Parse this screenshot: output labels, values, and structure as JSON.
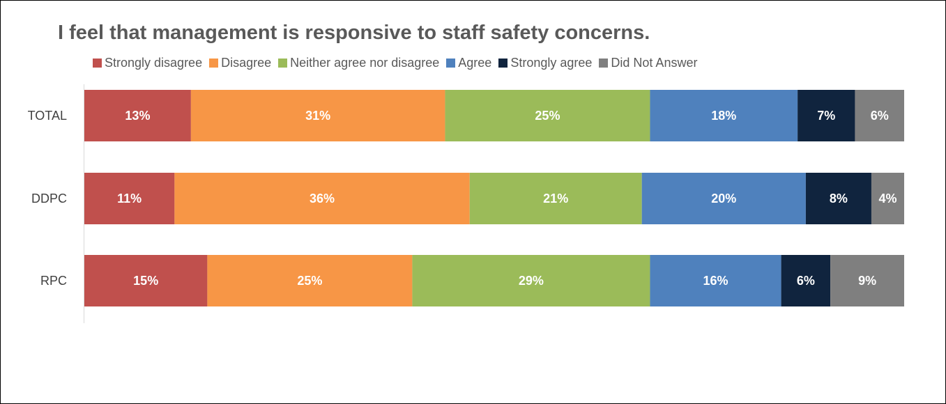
{
  "chart_data": {
    "type": "bar",
    "orientation": "horizontal",
    "stacked": true,
    "percent_stacked": true,
    "title": "I feel that management is responsive to staff safety concerns.",
    "categories": [
      "TOTAL",
      "DDPC",
      "RPC"
    ],
    "series": [
      {
        "name": "Strongly disagree",
        "color": "#c0504d",
        "values": [
          13,
          11,
          15
        ],
        "labels": [
          "13%",
          "11%",
          "15%"
        ]
      },
      {
        "name": "Disagree",
        "color": "#f79646",
        "values": [
          31,
          36,
          25
        ],
        "labels": [
          "31%",
          "36%",
          "25%"
        ]
      },
      {
        "name": "Neither agree nor disagree",
        "color": "#9bbb59",
        "values": [
          25,
          21,
          29
        ],
        "labels": [
          "25%",
          "21%",
          "29%"
        ]
      },
      {
        "name": "Agree",
        "color": "#4f81bd",
        "values": [
          18,
          20,
          16
        ],
        "labels": [
          "18%",
          "20%",
          "16%"
        ]
      },
      {
        "name": "Strongly agree",
        "color": "#10243e",
        "values": [
          7,
          8,
          6
        ],
        "labels": [
          "7%",
          "8%",
          "6%"
        ]
      },
      {
        "name": "Did Not Answer",
        "color": "#7f7f7f",
        "values": [
          6,
          4,
          9
        ],
        "labels": [
          "6%",
          "4%",
          "9%"
        ]
      }
    ],
    "legend_position": "top",
    "grid": false,
    "xlim": [
      0,
      100
    ]
  }
}
